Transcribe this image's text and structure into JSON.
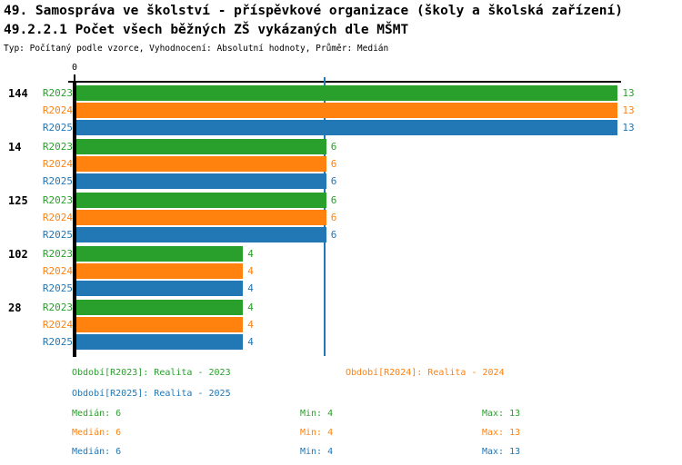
{
  "header": {
    "title_line1": "49. Samospráva ve školství - příspěvkové organizace (školy a školská zařízení)",
    "title_line2": "49.2.2.1 Počet všech běžných ZŠ vykázaných dle MŠMT",
    "subtitle": "Typ: Počítaný podle vzorce, Vyhodnocení: Absolutní hodnoty, Průměr: Medián"
  },
  "colors": {
    "r2023": "#2AA02C",
    "r2024": "#FF820E",
    "r2025": "#2277B5",
    "axis": "#000000",
    "median_line": "#2277B5",
    "background": "#FFFFFF"
  },
  "chart_data": {
    "type": "bar",
    "orientation": "horizontal",
    "title": "49.2.2.1 Počet všech běžných ZŠ vykázaných dle MŠMT",
    "categories": [
      "144",
      "14",
      "125",
      "102",
      "28"
    ],
    "series": [
      {
        "name": "R2023",
        "values": [
          13,
          6,
          6,
          4,
          4
        ]
      },
      {
        "name": "R2024",
        "values": [
          13,
          6,
          6,
          4,
          4
        ]
      },
      {
        "name": "R2025",
        "values": [
          13,
          6,
          6,
          4,
          4
        ]
      }
    ],
    "xlim": [
      0,
      13
    ],
    "axis_zero_label": "0",
    "median_line_value": 6,
    "grid": false,
    "value_labels_shown": true,
    "legend_position": "bottom"
  },
  "legend": {
    "r2023": "Období[R2023]: Realita - 2023",
    "r2024": "Období[R2024]: Realita - 2024",
    "r2025": "Období[R2025]: Realita - 2025"
  },
  "stats": [
    {
      "series": "R2023",
      "median": "Medián: 6",
      "min": "Min: 4",
      "max": "Max: 13"
    },
    {
      "series": "R2024",
      "median": "Medián: 6",
      "min": "Min: 4",
      "max": "Max: 13"
    },
    {
      "series": "R2025",
      "median": "Medián: 6",
      "min": "Min: 4",
      "max": "Max: 13"
    }
  ]
}
